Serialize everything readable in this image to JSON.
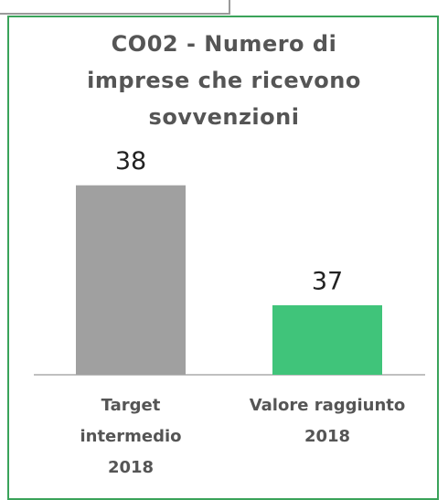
{
  "chart_data": {
    "type": "bar",
    "title": "CO02 - Numero di imprese che ricevono sovvenzioni",
    "categories": [
      "Target intermedio 2018",
      "Valore raggiunto 2018"
    ],
    "values": [
      38,
      37
    ],
    "colors": [
      "#a0a0a0",
      "#40c47a"
    ],
    "ylim": [
      36.42,
      38.6
    ]
  }
}
